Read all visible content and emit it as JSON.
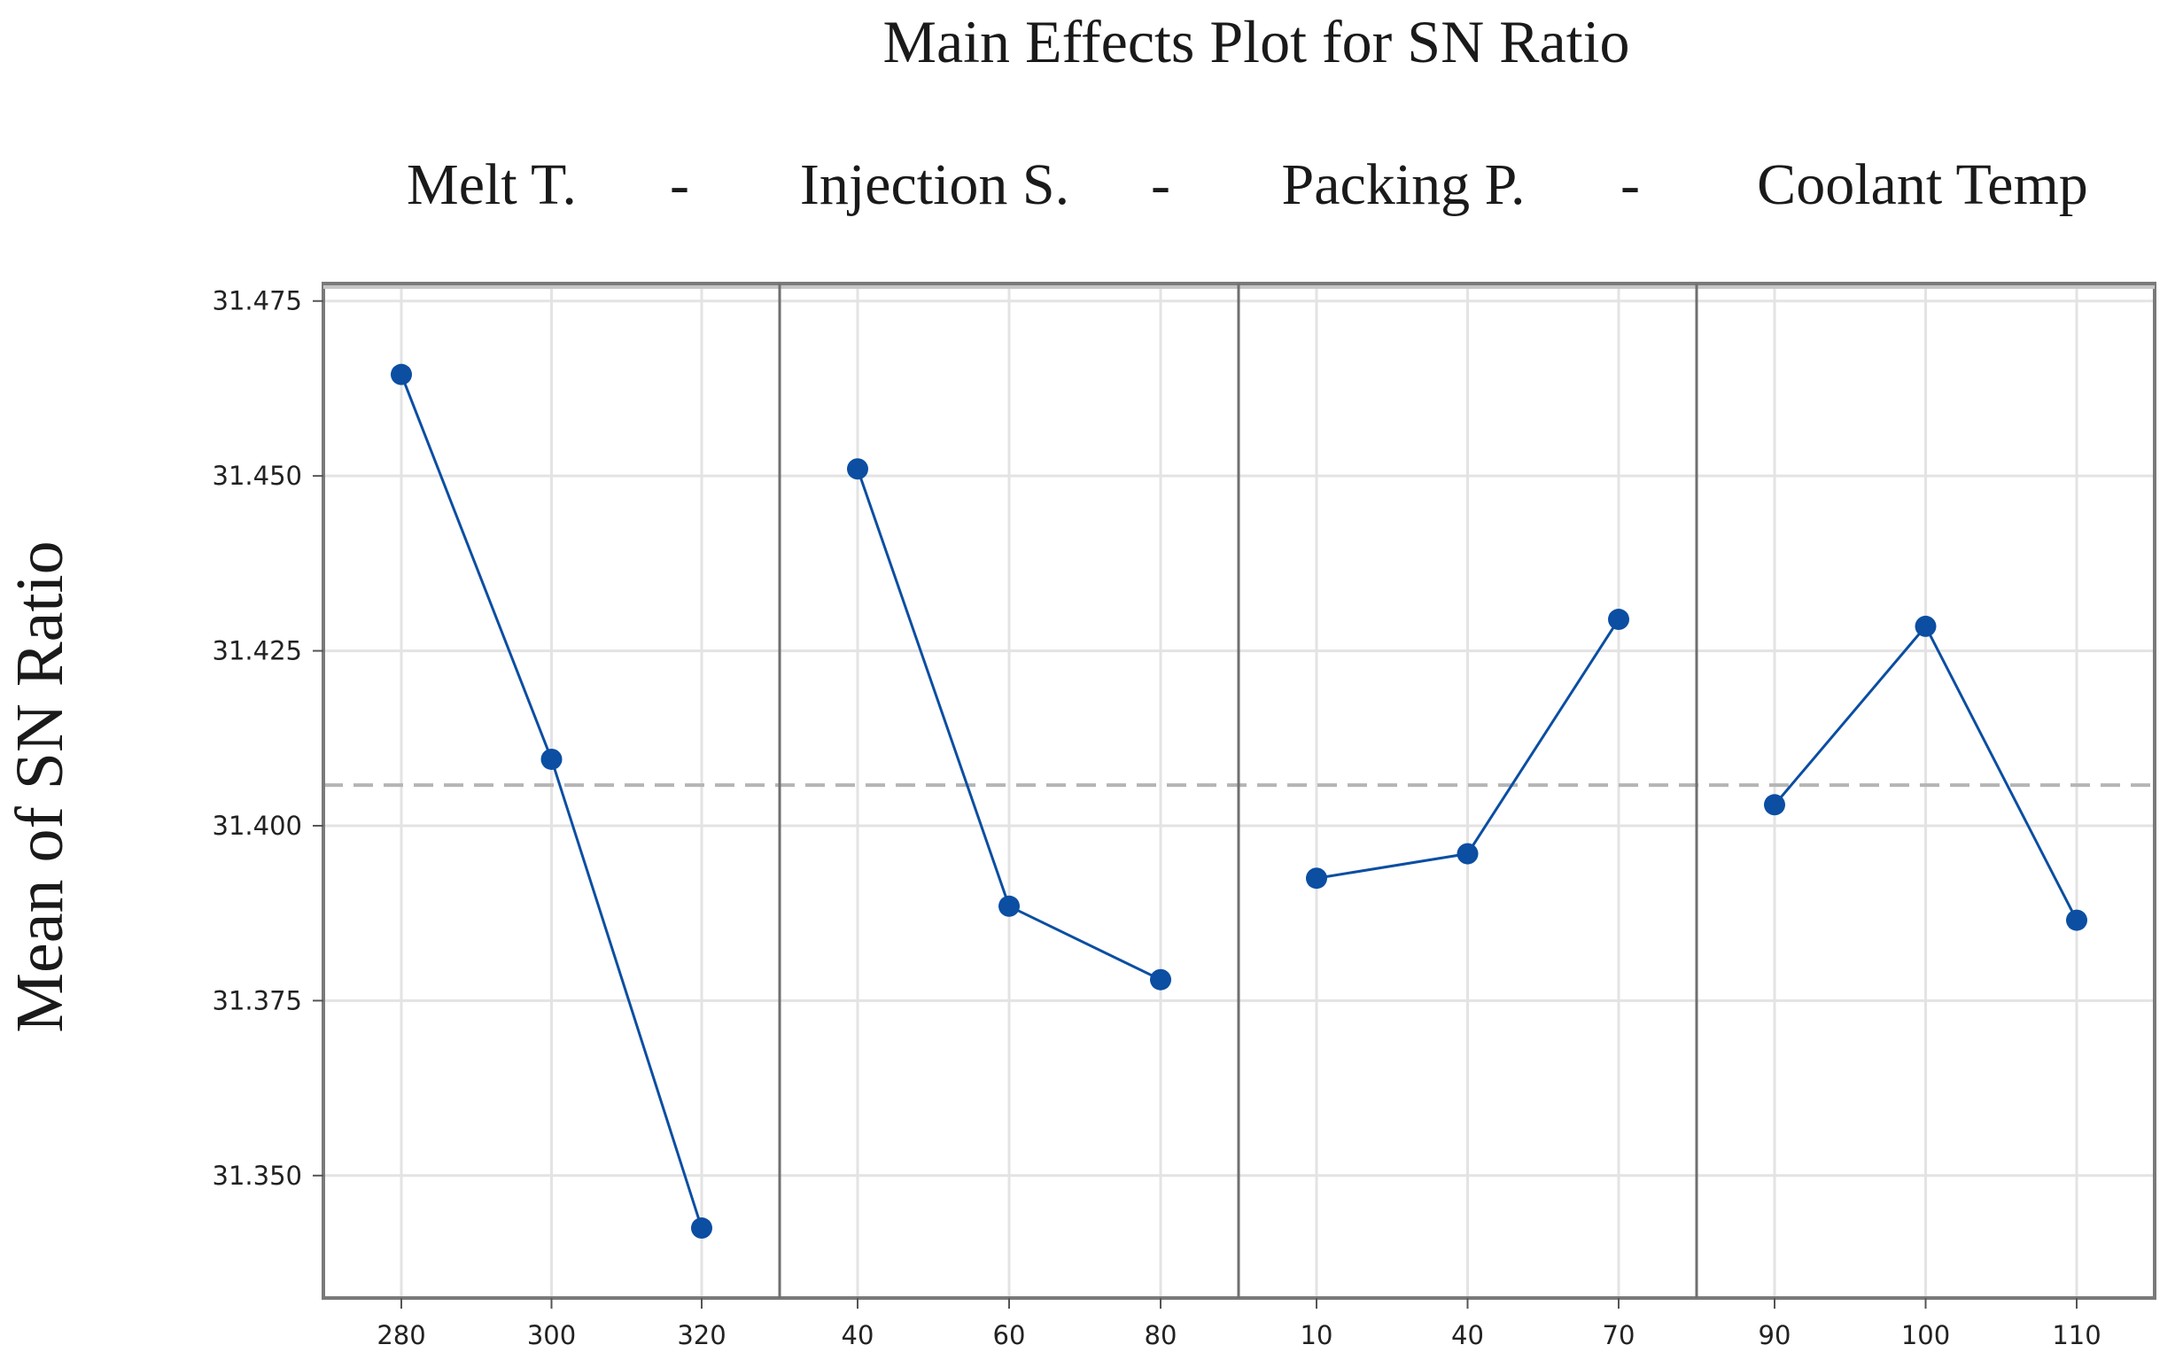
{
  "chart_data": {
    "type": "line",
    "title": "Main Effects Plot for SN Ratio",
    "ylabel": "Mean of SN Ratio",
    "ylim": [
      31.3325,
      31.4775
    ],
    "yticks": [
      31.475,
      31.45,
      31.425,
      31.4,
      31.375,
      31.35
    ],
    "ytick_labels": [
      "31.475",
      "31.450",
      "31.425",
      "31.400",
      "31.375",
      "31.350"
    ],
    "reference_mean": 31.4058,
    "separator": "-",
    "grid": true,
    "series_color": "#0b4ea2",
    "panels": [
      {
        "name": "Melt T.",
        "levels": [
          "280",
          "300",
          "320"
        ],
        "values": [
          31.4645,
          31.4095,
          31.3425
        ]
      },
      {
        "name": "Injection S.",
        "levels": [
          "40",
          "60",
          "80"
        ],
        "values": [
          31.451,
          31.3885,
          31.378
        ]
      },
      {
        "name": "Packing P.",
        "levels": [
          "10",
          "40",
          "70"
        ],
        "values": [
          31.3925,
          31.396,
          31.4295
        ]
      },
      {
        "name": "Coolant Temp",
        "levels": [
          "90",
          "100",
          "110"
        ],
        "values": [
          31.403,
          31.4285,
          31.3865
        ]
      }
    ]
  }
}
